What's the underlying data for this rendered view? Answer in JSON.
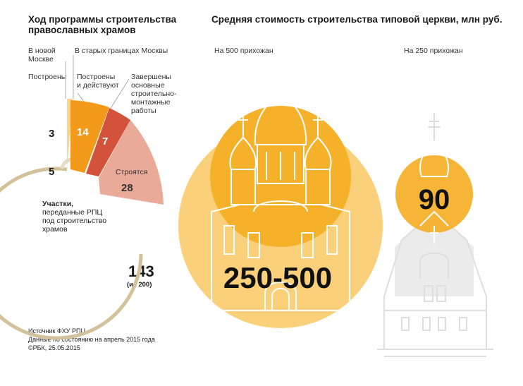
{
  "left": {
    "title_line1": "Ход программы строительства",
    "title_line2": "православных храмов",
    "legend_new_moscow_l1": "В новой",
    "legend_new_moscow_l2": "Москве",
    "legend_old_moscow": "В старых границах Москвы",
    "label_built": "Построены",
    "label_built_active_l1": "Построены",
    "label_built_active_l2": "и действуют",
    "label_finished_l1": "Завершены",
    "label_finished_l2": "основные",
    "label_finished_l3": "строительно-",
    "label_finished_l4": "монтажные",
    "label_finished_l5": "работы",
    "label_building": "Строятся",
    "plots_l1": "Участки,",
    "plots_l2": "переданные РПЦ",
    "plots_l3": "под строительство",
    "plots_l4": "храмов",
    "total_label": "143",
    "total_sub": "(из 200)",
    "colors": {
      "new_moscow_built": "#f9d48a",
      "built_active": "#f39a1b",
      "finished": "#d2523c",
      "building": "#e9ab97",
      "plots_ring": "#d3c19c",
      "plots_ring_light": "#e8dcc3"
    }
  },
  "right": {
    "title": "Средняя стоимость строительства типовой церкви, млн руб.",
    "label_500": "На 500 прихожан",
    "label_250": "На 250 прихожан",
    "value_500": "250-500",
    "value_250": "90",
    "colors": {
      "circle_outer": "#fbd07a",
      "circle_inner": "#f6b12b",
      "church_lines": "#ffffff",
      "church_gray": "#dedede"
    }
  },
  "footer": {
    "source": "Источник ФХУ РПЦ",
    "as_of": "Данные по состоянию на апрель 2015 года",
    "copyright": "©РБК, 25.05.2015"
  },
  "chart_data": [
    {
      "type": "pie",
      "categories": [
        "Построены",
        "Построены и действуют",
        "Завершены основные строительно-монтажные работы",
        "Строятся",
        "Участки, переданные РПЦ под строительство храмов"
      ],
      "series": [
        {
          "name": "В новой Москве",
          "values": [
            3,
            null,
            null,
            null,
            5
          ]
        },
        {
          "name": "В старых границах Москвы",
          "values": [
            null,
            14,
            7,
            28,
            143
          ]
        }
      ],
      "title": "Ход программы строительства православных храмов",
      "annotations": [
        "143 (из 200)"
      ]
    },
    {
      "type": "bar",
      "title": "Средняя стоимость строительства типовой церкви, млн руб.",
      "categories": [
        "На 500 прихожан",
        "На 250 прихожан"
      ],
      "values": [
        "250-500",
        "90"
      ]
    }
  ]
}
